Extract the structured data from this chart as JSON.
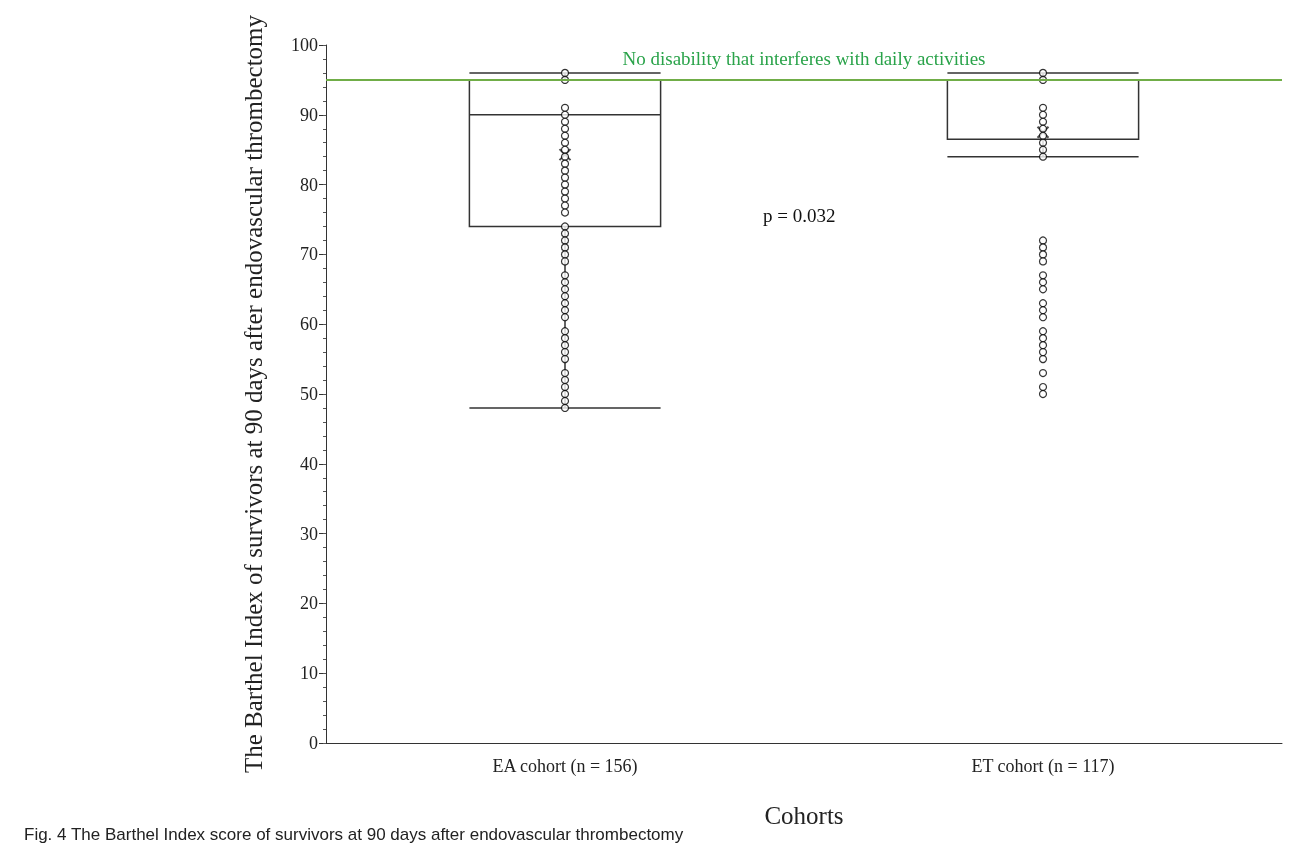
{
  "chart_data": {
    "type": "box",
    "ylabel": "The Barthel Index of survivors at 90 days after endovascular thrombectomy",
    "xlabel": "Cohorts",
    "categories": [
      "EA cohort (n = 156)",
      "ET cohort (n = 117)"
    ],
    "boxes": [
      {
        "low": 48,
        "q1": 74,
        "median": 90,
        "q3": 95,
        "high": 96,
        "mean": 84.3
      },
      {
        "low": 84,
        "q1": 86.5,
        "median": 95,
        "q3": 95,
        "high": 96,
        "mean": 87.5,
        "outliers": [
          72,
          71,
          70,
          69,
          67,
          66,
          65,
          63,
          62,
          61,
          59,
          58,
          57,
          56,
          55,
          53,
          51,
          50
        ]
      }
    ],
    "series": [
      {
        "type": "scatter",
        "x": [
          "EA cohort (n = 156)",
          "EA cohort (n = 156)",
          "EA cohort (n = 156)",
          "EA cohort (n = 156)",
          "EA cohort (n = 156)",
          "EA cohort (n = 156)",
          "EA cohort (n = 156)",
          "EA cohort (n = 156)",
          "EA cohort (n = 156)",
          "EA cohort (n = 156)",
          "EA cohort (n = 156)",
          "EA cohort (n = 156)",
          "EA cohort (n = 156)",
          "EA cohort (n = 156)",
          "EA cohort (n = 156)",
          "EA cohort (n = 156)",
          "EA cohort (n = 156)",
          "EA cohort (n = 156)",
          "EA cohort (n = 156)",
          "EA cohort (n = 156)",
          "EA cohort (n = 156)",
          "EA cohort (n = 156)",
          "EA cohort (n = 156)",
          "EA cohort (n = 156)",
          "EA cohort (n = 156)",
          "EA cohort (n = 156)",
          "EA cohort (n = 156)",
          "EA cohort (n = 156)",
          "EA cohort (n = 156)",
          "EA cohort (n = 156)",
          "EA cohort (n = 156)",
          "EA cohort (n = 156)",
          "EA cohort (n = 156)",
          "EA cohort (n = 156)",
          "EA cohort (n = 156)",
          "EA cohort (n = 156)",
          "EA cohort (n = 156)",
          "EA cohort (n = 156)",
          "EA cohort (n = 156)",
          "EA cohort (n = 156)",
          "EA cohort (n = 156)",
          "EA cohort (n = 156)",
          "ET cohort (n = 117)",
          "ET cohort (n = 117)",
          "ET cohort (n = 117)",
          "ET cohort (n = 117)",
          "ET cohort (n = 117)",
          "ET cohort (n = 117)",
          "ET cohort (n = 117)",
          "ET cohort (n = 117)",
          "ET cohort (n = 117)",
          "ET cohort (n = 117)"
        ],
        "values": [
          96,
          95,
          91,
          90,
          89,
          88,
          87,
          86,
          85,
          84,
          83,
          82,
          81,
          80,
          79,
          78,
          77,
          76,
          74,
          73,
          72,
          71,
          70,
          69,
          67,
          66,
          65,
          64,
          63,
          62,
          61,
          59,
          58,
          57,
          56,
          55,
          53,
          52,
          51,
          50,
          49,
          48,
          96,
          95,
          91,
          90,
          89,
          88,
          87,
          86,
          85,
          84
        ],
        "color": "#000000"
      }
    ],
    "ylim": [
      0,
      100
    ],
    "yticks": [
      0,
      10,
      20,
      30,
      40,
      50,
      60,
      70,
      80,
      90,
      100
    ],
    "grid": false,
    "marker": "circle",
    "ref_lines": [
      {
        "axis": "y",
        "value": 95,
        "label": "No disability that interferes with daily activities",
        "color": "#70ad47"
      }
    ],
    "annotations": [
      "p = 0.032",
      "Fig. 4 The Barthel Index score of survivors at 90 days after endovascular thrombectomy"
    ]
  }
}
